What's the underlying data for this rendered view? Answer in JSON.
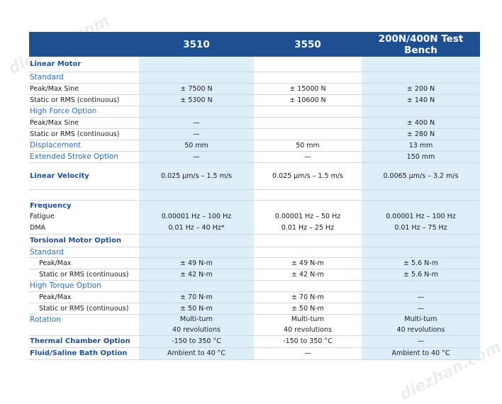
{
  "watermarks": [
    "diezhan.com",
    "diezhan.com"
  ],
  "header": {
    "col0": "",
    "col1": "3510",
    "col2": "3550",
    "col3": "200N/400N Test Bench"
  },
  "colors": {
    "header_bg": "#1d4f92",
    "shade": "#ddeef9",
    "section": "#1d4f92",
    "subsection": "#2f6eb5"
  },
  "rows": [
    {
      "label": "Linear Motor",
      "kind": "sec",
      "v": [
        "",
        "",
        ""
      ],
      "h": 21
    },
    {
      "label": "Standard",
      "kind": "sub",
      "v": [
        "",
        "",
        ""
      ],
      "h": 16
    },
    {
      "label": "Peak/Max Sine",
      "kind": "plain",
      "v": [
        "± 7500 N",
        "± 15000 N",
        "± 200 N"
      ],
      "h": 16
    },
    {
      "label": "Static or RMS (continuous)",
      "kind": "plain",
      "v": [
        "± 5300 N",
        "± 10600 N",
        "± 140 N"
      ],
      "h": 16
    },
    {
      "label": "High Force Option",
      "kind": "sub",
      "v": [
        "",
        "",
        ""
      ],
      "h": 16
    },
    {
      "label": "Peak/Max Sine",
      "kind": "plain",
      "v": [
        "—",
        "",
        "± 400 N"
      ],
      "h": 16
    },
    {
      "label": "Static or RMS (continuous)",
      "kind": "plain",
      "v": [
        "—",
        "",
        "± 280 N"
      ],
      "h": 16
    },
    {
      "label": "Displacement",
      "kind": "sub",
      "v": [
        "50 mm",
        "50 mm",
        "13 mm"
      ],
      "h": 16
    },
    {
      "label": "Extended Stroke Option",
      "kind": "sub",
      "v": [
        "—",
        "—",
        "150 mm"
      ],
      "h": 16
    },
    {
      "label": "Linear Velocity",
      "kind": "sec",
      "v": [
        "0.025 μm/s – 1.5 m/s",
        "0.025 μm/s – 1.5 m/s",
        "0.0065 μm/s – 3.2 m/s"
      ],
      "h": 38
    },
    {
      "label": "",
      "kind": "plain",
      "v": [
        "",
        "",
        ""
      ],
      "h": 15
    },
    {
      "label": "Frequency",
      "kind": "sec",
      "v": [
        "",
        "",
        ""
      ],
      "h": 16,
      "tight": true
    },
    {
      "label": "Fatigue",
      "kind": "plain",
      "v": [
        "0.00001 Hz – 100 Hz",
        "0.00001 Hz – 50 Hz",
        "0.00001 Hz – 100 Hz"
      ],
      "h": 15,
      "tight": true,
      "big": true
    },
    {
      "label": "DMA",
      "kind": "plain",
      "v": [
        "0.01 Hz – 40 Hz*",
        "0.01 Hz – 25 Hz",
        "0.01 Hz – 75 Hz"
      ],
      "h": 17,
      "big": true
    },
    {
      "label": "Torsional Motor Option",
      "kind": "sec",
      "v": [
        "",
        "",
        ""
      ],
      "h": 18
    },
    {
      "label": "Standard",
      "kind": "sub",
      "v": [
        "",
        "",
        ""
      ],
      "h": 15
    },
    {
      "label": "Peak/Max",
      "kind": "plain",
      "indent": true,
      "v": [
        "± 49 N-m",
        "± 49 N-m",
        "± 5.6 N-m"
      ],
      "h": 16
    },
    {
      "label": "Static or RMS (continuous)",
      "kind": "plain",
      "indent": true,
      "v": [
        "± 42 N-m",
        "± 42 N-m",
        "± 5.6 N-m"
      ],
      "h": 16
    },
    {
      "label": "High Torque Option",
      "kind": "sub",
      "v": [
        "",
        "",
        ""
      ],
      "h": 16
    },
    {
      "label": "Peak/Max",
      "kind": "plain",
      "indent": true,
      "v": [
        "± 70 N-m",
        "± 70 N-m",
        "—"
      ],
      "h": 16
    },
    {
      "label": "Static or RMS (continuous)",
      "kind": "plain",
      "indent": true,
      "v": [
        "± 50 N-m",
        "± 50 N-m",
        "—"
      ],
      "h": 16
    },
    {
      "label": "Rotation",
      "kind": "sub",
      "v": [
        "Multi-turn",
        "Multi-turn",
        "Multi-turn"
      ],
      "h": 15,
      "tight": true
    },
    {
      "label": "",
      "kind": "plain",
      "v": [
        "40 revolutions",
        "40 revolutions",
        "40 revolutions"
      ],
      "h": 15
    },
    {
      "label": "Thermal Chamber Option",
      "kind": "sec",
      "v": [
        "-150 to 350 °C",
        "-150 to 350 °C",
        "—"
      ],
      "h": 17
    },
    {
      "label": "Fluid/Saline Bath Option",
      "kind": "sec",
      "v": [
        "Ambient to 40 °C",
        "—",
        "Ambient to 40 °C"
      ],
      "h": 17
    }
  ]
}
